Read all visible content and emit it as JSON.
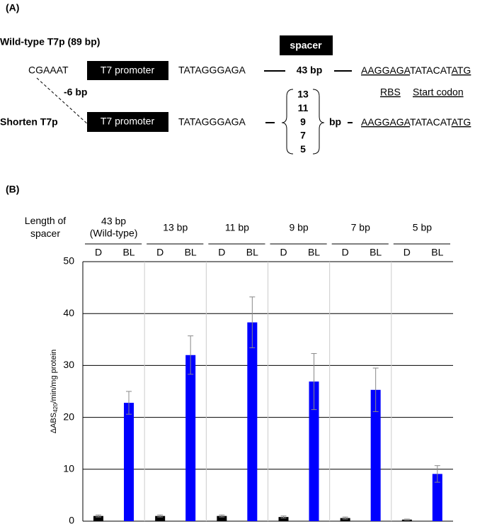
{
  "panel_labels": [
    "(A)",
    "(B)"
  ],
  "diagram": {
    "wild_type": {
      "label": "Wild-type T7p (89 bp)",
      "upstream": "CGAAAT",
      "promoter": "T7 promoter",
      "sequence": "TATAGGGAGA",
      "spacer": "43 bp",
      "rbs": "AAGGAGA",
      "middle": "TATACAT",
      "start": "ATG"
    },
    "spacer_label": "spacer",
    "deletion": "-6 bp",
    "rbs_label": "RBS",
    "start_label": "Start codon",
    "shortened": {
      "label": "Shorten T7p",
      "promoter": "T7 promoter",
      "sequence": "TATAGGGAGA",
      "spacer_options": [
        "13",
        "11",
        "9",
        "7",
        "5"
      ],
      "spacer_unit": "bp",
      "rbs": "AAGGAGA",
      "middle": "TATACAT",
      "start": "ATG"
    }
  },
  "chart_data": {
    "type": "bar",
    "x_label": "Length of spacer",
    "y_label": {
      "prefix": "ΔABS",
      "subscript": "420",
      "suffix": "/min/mg protein"
    },
    "categories": [
      "43 bp",
      "13 bp",
      "11 bp",
      "9 bp",
      "7 bp",
      "5 bp"
    ],
    "wild_type_note": "(Wild-type)",
    "series": [
      {
        "name": "D",
        "color": "#000000",
        "values": [
          1.0,
          1.0,
          1.0,
          0.8,
          0.6,
          0.3
        ],
        "errors": [
          0.2,
          0.2,
          0.2,
          0.2,
          0.2,
          0.1
        ]
      },
      {
        "name": "BL",
        "color": "#0000ff",
        "values": [
          22.8,
          32.0,
          38.3,
          26.9,
          25.3,
          9.1
        ],
        "errors": [
          2.2,
          3.7,
          4.9,
          5.4,
          4.2,
          1.6
        ]
      }
    ],
    "ylim": [
      0,
      50
    ],
    "yticks": [
      0,
      10,
      20,
      30,
      40,
      50
    ],
    "grid": true
  }
}
